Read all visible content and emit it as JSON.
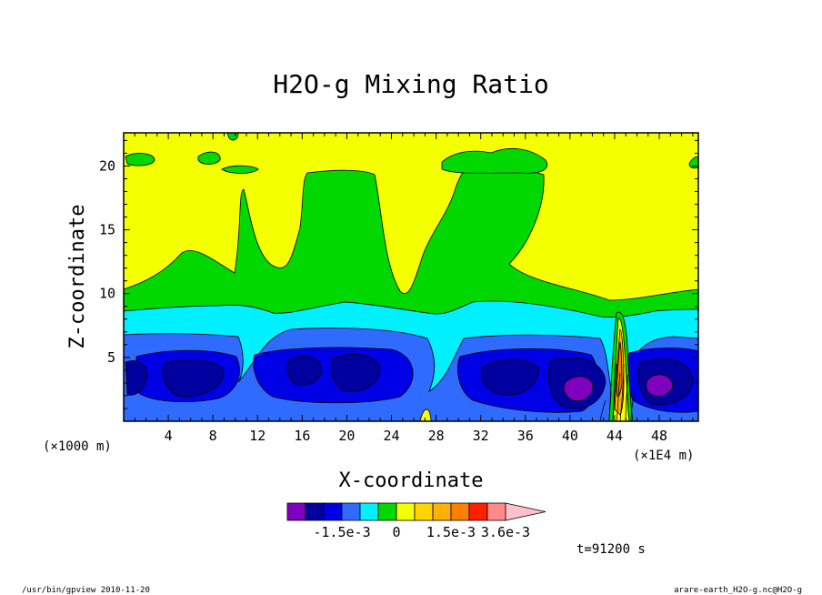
{
  "chart_data": {
    "type": "heatmap",
    "title": "H2O-g Mixing Ratio",
    "xlabel": "X-coordinate",
    "ylabel": "Z-coordinate",
    "x_unit_left": "(×1000 m)",
    "x_unit_right": "(×1E4 m)",
    "xlim": [
      0,
      51.5
    ],
    "ylim": [
      0,
      22.6
    ],
    "x_ticks": [
      "4",
      "8",
      "12",
      "16",
      "20",
      "24",
      "28",
      "32",
      "36",
      "40",
      "44",
      "48"
    ],
    "y_ticks": [
      "5",
      "10",
      "15",
      "20"
    ],
    "colorbar": {
      "colors": [
        "#7f00bf",
        "#00009f",
        "#0000e6",
        "#2f6bff",
        "#00f0ff",
        "#00d800",
        "#f4ff00",
        "#ffd500",
        "#ffb000",
        "#ff7f00",
        "#ff2000",
        "#ff8a8a",
        "#ffc0cb"
      ],
      "labels": [
        "-1.5e-3",
        "0",
        "1.5e-3",
        "3.6e-3"
      ],
      "extend": "max"
    },
    "time_label": "t=91200 s"
  },
  "footer": {
    "left": "/usr/bin/gpview   2010-11-20",
    "right": "arare-earth_H2O-g.nc@H2O-g"
  }
}
